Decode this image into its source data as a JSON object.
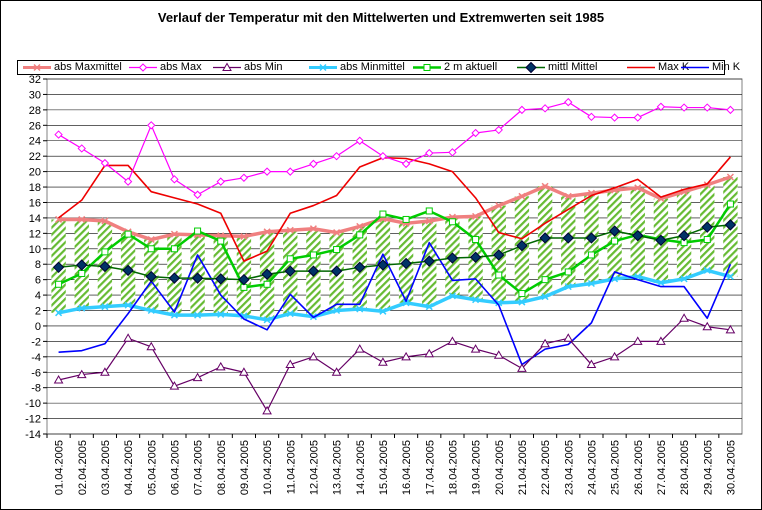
{
  "chart_data": {
    "type": "line",
    "title": "Verlauf der Temperatur mit den Mittelwerten und Extremwerten seit 1985",
    "xlabel": "",
    "ylabel": "",
    "ylim": [
      -14,
      32
    ],
    "ytick_step": 2,
    "grid": "horizontal",
    "legend_position": "top",
    "categories": [
      "01.04.2005",
      "02.04.2005",
      "03.04.2005",
      "04.04.2005",
      "05.04.2005",
      "06.04.2005",
      "07.04.2005",
      "08.04.2005",
      "09.04.2005",
      "10.04.2005",
      "11.04.2005",
      "12.04.2005",
      "13.04.2005",
      "14.04.2005",
      "15.04.2005",
      "16.04.2005",
      "17.04.2005",
      "18.04.2005",
      "19.04.2005",
      "20.04.2005",
      "21.04.2005",
      "22.04.2005",
      "23.04.2005",
      "24.04.2005",
      "25.04.2005",
      "26.04.2005",
      "27.04.2005",
      "28.04.2005",
      "29.04.2005",
      "30.04.2005"
    ],
    "series": [
      {
        "name": "abs Maxmittel",
        "color": "#f08080",
        "marker": "x",
        "values": [
          13.8,
          13.8,
          13.6,
          12.2,
          11.2,
          11.9,
          11.8,
          11.7,
          11.6,
          12.2,
          12.4,
          12.6,
          12.1,
          12.9,
          13.9,
          13.3,
          13.6,
          14.1,
          14.2,
          15.6,
          16.8,
          18.1,
          16.8,
          17.2,
          17.6,
          17.9,
          16.5,
          17.4,
          18.3,
          19.3
        ]
      },
      {
        "name": "abs Max",
        "color": "#ff00ff",
        "marker": "diamond-open",
        "values": [
          24.8,
          23.0,
          21.1,
          18.7,
          26.0,
          19.0,
          17.0,
          18.7,
          19.2,
          20.0,
          20.0,
          21.0,
          22.0,
          24.0,
          22.0,
          21.0,
          22.4,
          22.5,
          25.0,
          25.4,
          28.0,
          28.2,
          29.0,
          27.1,
          27.0,
          27.0,
          28.4,
          28.3,
          28.3,
          28.0
        ]
      },
      {
        "name": "abs Min",
        "color": "#660066",
        "marker": "triangle-open",
        "values": [
          -7.0,
          -6.3,
          -6.0,
          -1.6,
          -2.7,
          -7.8,
          -6.7,
          -5.3,
          -6.0,
          -11.0,
          -5.0,
          -4.0,
          -6.0,
          -3.0,
          -4.7,
          -4.0,
          -3.6,
          -2.0,
          -3.0,
          -3.8,
          -5.5,
          -2.3,
          -1.6,
          -5.0,
          -4.0,
          -2.0,
          -2.0,
          1.0,
          -0.1,
          -0.5
        ]
      },
      {
        "name": "abs Minmittel",
        "color": "#33ccff",
        "marker": "x",
        "values": [
          1.7,
          2.3,
          2.5,
          2.7,
          2.0,
          1.4,
          1.4,
          1.5,
          1.3,
          0.8,
          1.6,
          1.2,
          2.0,
          2.2,
          1.9,
          3.0,
          2.5,
          3.9,
          3.4,
          3.0,
          3.1,
          3.8,
          5.1,
          5.5,
          6.1,
          6.4,
          5.6,
          6.1,
          7.2,
          6.4
        ]
      },
      {
        "name": "2 m aktuell",
        "color": "#00cc00",
        "marker": "square-open",
        "values": [
          5.4,
          6.8,
          9.6,
          11.9,
          10.0,
          10.0,
          12.3,
          11.0,
          5.0,
          5.4,
          8.7,
          9.2,
          9.9,
          11.8,
          14.5,
          13.8,
          14.9,
          13.5,
          11.2,
          6.6,
          4.2,
          6.0,
          7.0,
          9.2,
          11.0,
          11.8,
          11.2,
          10.8,
          11.2,
          15.8
        ]
      },
      {
        "name": "mittl Mittel",
        "color": "#006600",
        "marker": "diamond-filled",
        "values": [
          7.6,
          7.9,
          7.7,
          7.2,
          6.4,
          6.2,
          6.2,
          6.1,
          6.0,
          6.7,
          7.1,
          7.1,
          7.1,
          7.6,
          7.9,
          8.1,
          8.4,
          8.8,
          8.9,
          9.2,
          10.4,
          11.4,
          11.4,
          11.4,
          12.3,
          11.7,
          11.1,
          11.7,
          12.8,
          13.1
        ]
      },
      {
        "name": "Max K",
        "color": "#ee0000",
        "marker": "none",
        "values": [
          14.0,
          16.3,
          20.8,
          20.8,
          17.4,
          16.6,
          15.8,
          14.6,
          8.4,
          9.7,
          14.6,
          15.6,
          16.9,
          20.6,
          21.8,
          21.7,
          21.0,
          20.0,
          16.6,
          12.1,
          11.3,
          13.3,
          15.1,
          16.9,
          17.9,
          19.0,
          16.7,
          17.7,
          18.4,
          21.9
        ]
      },
      {
        "name": "Min K",
        "color": "#0000ff",
        "marker": "none",
        "values": [
          -3.4,
          -3.2,
          -2.3,
          1.6,
          5.8,
          1.8,
          9.2,
          4.0,
          0.9,
          -0.5,
          4.1,
          1.1,
          2.8,
          2.8,
          9.3,
          3.2,
          10.8,
          5.9,
          6.1,
          2.7,
          -5.0,
          -3.0,
          -2.4,
          0.4,
          7.0,
          6.0,
          5.1,
          5.1,
          1.0,
          8.0
        ]
      }
    ]
  }
}
